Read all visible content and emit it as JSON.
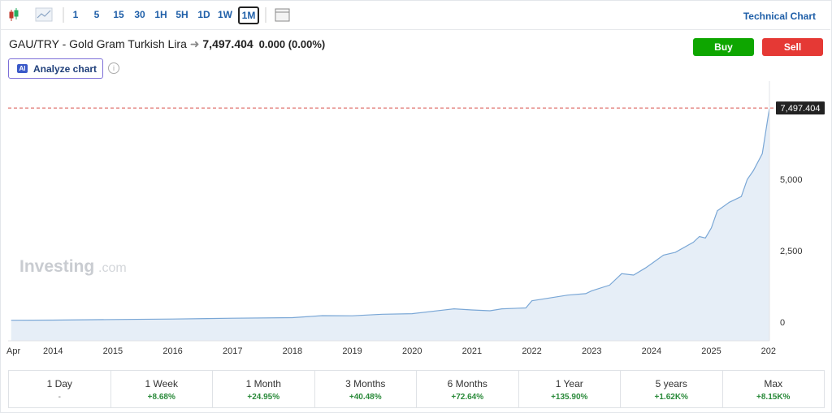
{
  "toolbar": {
    "intervals": [
      "1",
      "5",
      "15",
      "30",
      "1H",
      "5H",
      "1D",
      "1W",
      "1M"
    ],
    "active_interval": "1M",
    "technical_chart": "Technical Chart"
  },
  "header": {
    "title": "GAU/TRY - Gold Gram Turkish Lira",
    "price": "7,497.404",
    "change": "0.000 (0.00%)",
    "buy": "Buy",
    "sell": "Sell",
    "ai_badge": "AI",
    "analyze": "Analyze chart"
  },
  "watermark": {
    "brand": "Investing",
    "suffix": ".com"
  },
  "chart_data": {
    "type": "area",
    "color": "#7aa7d6",
    "fill": "#e6eef7",
    "x": [
      2013.3,
      2014.0,
      2015.0,
      2016.0,
      2017.0,
      2018.0,
      2018.5,
      2019.0,
      2019.5,
      2020.0,
      2020.5,
      2020.7,
      2021.0,
      2021.3,
      2021.5,
      2021.9,
      2022.0,
      2022.3,
      2022.6,
      2022.9,
      2023.0,
      2023.3,
      2023.5,
      2023.7,
      2023.9,
      2024.0,
      2024.2,
      2024.4,
      2024.7,
      2024.8,
      2024.9,
      2025.0,
      2025.1,
      2025.3,
      2025.5,
      2025.6,
      2025.7,
      2025.85,
      2025.97
    ],
    "values": [
      70,
      75,
      95,
      110,
      140,
      160,
      230,
      225,
      280,
      300,
      420,
      470,
      430,
      400,
      470,
      500,
      750,
      850,
      950,
      1000,
      1100,
      1300,
      1700,
      1650,
      1900,
      2050,
      2350,
      2450,
      2800,
      3000,
      2950,
      3300,
      3900,
      4200,
      4400,
      5000,
      5300,
      5900,
      7497.404
    ],
    "xlim": [
      2013.25,
      2025.97
    ],
    "xticks": [
      {
        "value": 2013.3,
        "label": "Apr"
      },
      2014,
      2015,
      2016,
      2017,
      2018,
      2019,
      2020,
      2021,
      2022,
      2023,
      2024,
      2025,
      {
        "value": 2026,
        "label": "202"
      }
    ],
    "ylim": [
      -650,
      8440
    ],
    "yticks": [
      0,
      {
        "value": 2500,
        "label": "2,500"
      },
      {
        "value": 5000,
        "label": "5,000"
      }
    ],
    "grid": false,
    "price_line": {
      "value": 7497.404,
      "label": "7,497.404",
      "color": "#d9534f"
    }
  },
  "periods": [
    {
      "label": "1 Day",
      "value": "-"
    },
    {
      "label": "1 Week",
      "value": "+8.68%"
    },
    {
      "label": "1 Month",
      "value": "+24.95%"
    },
    {
      "label": "3 Months",
      "value": "+40.48%"
    },
    {
      "label": "6 Months",
      "value": "+72.64%"
    },
    {
      "label": "1 Year",
      "value": "+135.90%"
    },
    {
      "label": "5 years",
      "value": "+1.62K%"
    },
    {
      "label": "Max",
      "value": "+8.15K%"
    }
  ]
}
